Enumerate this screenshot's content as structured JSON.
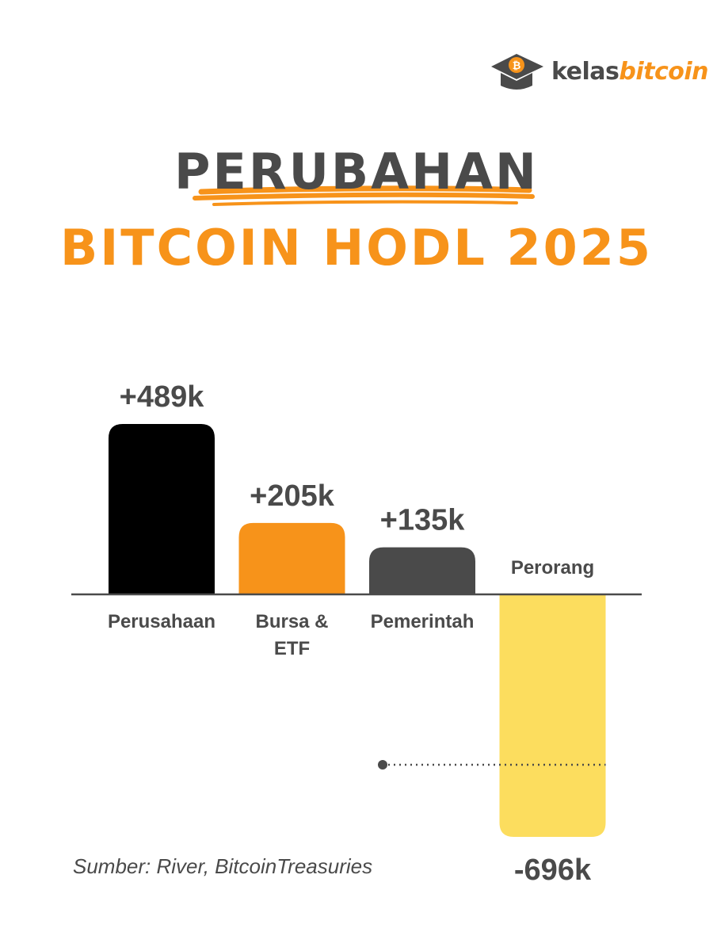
{
  "brand": {
    "name_part1": "kelas",
    "name_part2": "bitcoin",
    "accent_color": "#f7931a",
    "text_color": "#4a4a4a",
    "icon": "graduation-cap-bitcoin-icon"
  },
  "header": {
    "title_line1": "PERUBAHAN",
    "title_line2": "BITCOIN HODL 2025"
  },
  "source": "Sumber: River, BitcoinTreasuries",
  "chart_data": {
    "type": "bar",
    "title": "",
    "xlabel": "",
    "ylabel": "",
    "grid": false,
    "categories": [
      {
        "label_lines": [
          "Perusahaan"
        ],
        "value": 489,
        "value_label": "+489k",
        "color": "#000000"
      },
      {
        "label_lines": [
          "Bursa &",
          "ETF"
        ],
        "value": 205,
        "value_label": "+205k",
        "color": "#f7931a"
      },
      {
        "label_lines": [
          "Pemerintah"
        ],
        "value": 135,
        "value_label": "+135k",
        "color": "#4a4a4a"
      },
      {
        "label_lines": [
          "Perorang"
        ],
        "value": -696,
        "value_label": "-696k",
        "color": "#fcdd5e"
      }
    ],
    "reference_line": {
      "value": -489,
      "style": "dotted"
    },
    "baseline_color": "#4a4a4a"
  }
}
